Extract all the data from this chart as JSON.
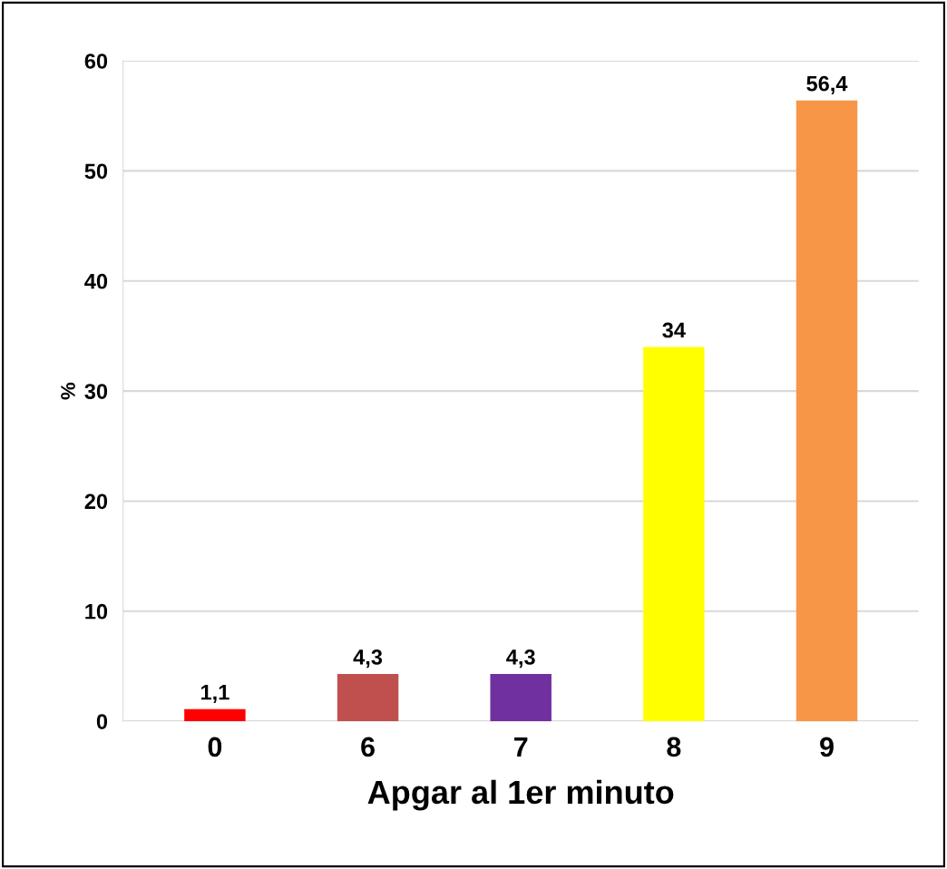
{
  "chart_data": {
    "type": "bar",
    "xlabel": "Apgar al 1er minuto",
    "ylabel": "%",
    "categories": [
      "0",
      "6",
      "7",
      "8",
      "9"
    ],
    "values": [
      1.1,
      4.3,
      4.3,
      34,
      56.4
    ],
    "colors": [
      "#ff0000",
      "#c0504d",
      "#7030a0",
      "#ffff00",
      "#f79646"
    ],
    "value_labels": [
      "1,1",
      "4,3",
      "4,3",
      "34",
      "56,4"
    ],
    "ylim": [
      0,
      60
    ],
    "yticks": [
      0,
      10,
      20,
      30,
      40,
      50,
      60
    ],
    "grid": "y",
    "legend": false
  }
}
